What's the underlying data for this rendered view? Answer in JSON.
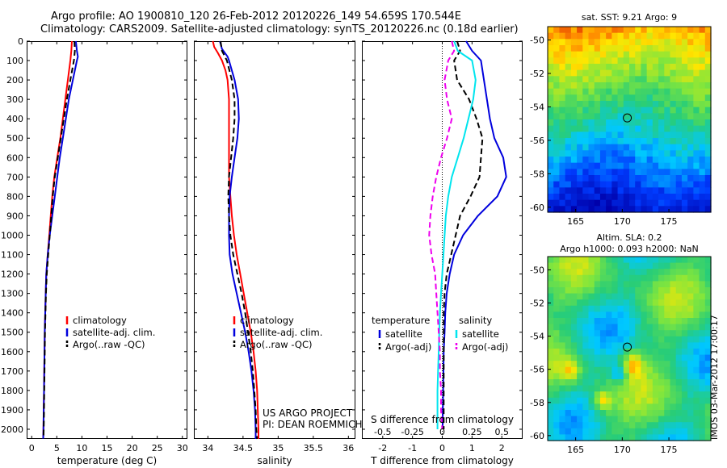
{
  "header": {
    "line1": "Argo profile: AO 1900810_120 26-Feb-2012 20120226_149 54.659S 170.544E",
    "line2": "Climatology: CARS2009. Satellite-adjusted climatology: synTS_20120226.nc (0.18d earlier)"
  },
  "colors": {
    "clim": "#ff0000",
    "sat": "#0000dd",
    "argo": "#000000",
    "sat_s": "#00e5ee",
    "argo_s": "#ee00ee"
  },
  "project_note": {
    "line1": "US ARGO PROJECT",
    "line2": "PI: DEAN ROEMMICH"
  },
  "stamp": "IMOS 03-Mar-2012 17:00:17",
  "chart_data": [
    {
      "type": "line",
      "xlabel": "temperature (deg C)",
      "xlim": [
        -1,
        31
      ],
      "ylim": [
        2050,
        0
      ],
      "xticks": [
        0,
        5,
        10,
        15,
        20,
        25,
        30
      ],
      "yticks": [
        0,
        100,
        200,
        300,
        400,
        500,
        600,
        700,
        800,
        900,
        1000,
        1100,
        1200,
        1300,
        1400,
        1500,
        1600,
        1700,
        1800,
        1900,
        2000
      ],
      "legend": [
        "climatology",
        "satellite-adj. clim.",
        "Argo(..raw -QC)"
      ],
      "legend_position": "lower-right",
      "series": [
        {
          "name": "climatology",
          "style": "solid",
          "color": "clim",
          "depth": [
            0,
            50,
            100,
            200,
            300,
            400,
            500,
            600,
            700,
            800,
            900,
            1000,
            1100,
            1200,
            1300,
            1400,
            1500,
            1600,
            1700,
            1800,
            1900,
            2000,
            2050
          ],
          "values": [
            8.0,
            7.9,
            7.7,
            7.2,
            6.7,
            6.2,
            5.7,
            5.1,
            4.5,
            4.1,
            3.8,
            3.5,
            3.2,
            2.9,
            2.8,
            2.7,
            2.6,
            2.55,
            2.5,
            2.45,
            2.4,
            2.35,
            2.3
          ]
        },
        {
          "name": "satellite-adj. clim.",
          "style": "solid",
          "color": "sat",
          "depth": [
            0,
            50,
            80,
            100,
            200,
            300,
            400,
            500,
            600,
            700,
            800,
            900,
            1000,
            1100,
            1200,
            1300,
            1400,
            1500,
            1600,
            1700,
            1800,
            1900,
            2000,
            2050
          ],
          "values": [
            8.8,
            9.0,
            9.2,
            9.0,
            8.2,
            7.4,
            6.8,
            6.2,
            5.6,
            5.1,
            4.6,
            4.1,
            3.6,
            3.2,
            2.9,
            2.8,
            2.7,
            2.6,
            2.55,
            2.5,
            2.45,
            2.4,
            2.35,
            2.3
          ]
        },
        {
          "name": "Argo(..raw -QC)",
          "style": "dashed",
          "color": "argo",
          "depth": [
            0,
            50,
            100,
            200,
            300,
            400,
            500,
            600,
            700,
            800,
            900,
            1000,
            1100,
            1200,
            1300,
            1400,
            1500,
            1600,
            1700,
            1800,
            1900,
            2000,
            2050
          ],
          "values": [
            8.5,
            8.6,
            8.4,
            7.7,
            7.0,
            6.4,
            5.8,
            5.2,
            4.6,
            4.2,
            3.9,
            3.6,
            3.3,
            3.0,
            2.85,
            2.75,
            2.65,
            2.6,
            2.55,
            2.5,
            2.45,
            2.4,
            2.35
          ]
        }
      ]
    },
    {
      "type": "line",
      "xlabel": "salinity",
      "xlim": [
        33.8,
        36.1
      ],
      "ylim": [
        2050,
        0
      ],
      "xticks": [
        34,
        34.5,
        35,
        35.5,
        36
      ],
      "legend": [
        "climatology",
        "satellite-adj. clim.",
        "Argo(..raw -QC)"
      ],
      "legend_position": "lower-right",
      "series": [
        {
          "name": "climatology",
          "style": "solid",
          "color": "clim",
          "depth": [
            0,
            30,
            60,
            100,
            150,
            200,
            300,
            400,
            500,
            600,
            700,
            800,
            900,
            1000,
            1100,
            1200,
            1300,
            1400,
            1500,
            1600,
            1700,
            1800,
            1900,
            2000,
            2050
          ],
          "values": [
            34.07,
            34.09,
            34.14,
            34.2,
            34.25,
            34.28,
            34.3,
            34.3,
            34.3,
            34.3,
            34.3,
            34.32,
            34.34,
            34.37,
            34.41,
            34.46,
            34.51,
            34.56,
            34.61,
            34.65,
            34.68,
            34.7,
            34.71,
            34.72,
            34.72
          ]
        },
        {
          "name": "satellite-adj. clim.",
          "style": "solid",
          "color": "sat",
          "depth": [
            0,
            40,
            80,
            100,
            200,
            300,
            400,
            500,
            600,
            700,
            800,
            900,
            1000,
            1100,
            1200,
            1300,
            1400,
            1500,
            1600,
            1700,
            1800,
            1900,
            2000,
            2050
          ],
          "values": [
            34.17,
            34.2,
            34.28,
            34.3,
            34.38,
            34.43,
            34.44,
            34.42,
            34.38,
            34.34,
            34.31,
            34.3,
            34.3,
            34.31,
            34.35,
            34.41,
            34.47,
            34.53,
            34.58,
            34.62,
            34.65,
            34.67,
            34.68,
            34.68
          ]
        },
        {
          "name": "Argo(..raw -QC)",
          "style": "dashed",
          "color": "argo",
          "depth": [
            0,
            50,
            100,
            200,
            300,
            400,
            500,
            600,
            700,
            800,
            900,
            1000,
            1100,
            1200,
            1300,
            1400,
            1500,
            1600,
            1700,
            1800,
            1900,
            2000,
            2050
          ],
          "values": [
            34.18,
            34.2,
            34.27,
            34.34,
            34.38,
            34.38,
            34.36,
            34.33,
            34.3,
            34.29,
            34.3,
            34.32,
            34.36,
            34.42,
            34.48,
            34.53,
            34.57,
            34.61,
            34.64,
            34.66,
            34.68,
            34.69,
            34.7
          ]
        }
      ]
    },
    {
      "type": "line",
      "xlabel": "T difference from climatology",
      "xlabel2": "S difference from climatology",
      "xlim": [
        -2.7,
        2.7
      ],
      "ylim": [
        2050,
        0
      ],
      "xticks": [
        -2,
        -1,
        0,
        1,
        2
      ],
      "xticks2": [
        -0.5,
        -0.25,
        0,
        0.25,
        0.5
      ],
      "xtick2_labels": [
        "-0.5",
        "-0.25",
        "0",
        "0.25",
        "0.5"
      ],
      "legend_titles": [
        "temperature",
        "salinity"
      ],
      "legend": [
        "satellite",
        "Argo(-adj)",
        "satellite",
        "Argo(-adj)"
      ],
      "legend_position": "lower-center",
      "series": [
        {
          "name": "satellite",
          "group": "temperature",
          "style": "solid",
          "color": "sat",
          "depth": [
            0,
            50,
            100,
            200,
            300,
            400,
            500,
            600,
            700,
            800,
            900,
            1000,
            1100,
            1200,
            1300,
            1400,
            1500,
            1600,
            1700,
            1800,
            1900,
            2000
          ],
          "values": [
            0.8,
            1.0,
            1.3,
            1.4,
            1.5,
            1.6,
            1.75,
            2.05,
            2.15,
            1.85,
            1.2,
            0.7,
            0.4,
            0.25,
            0.15,
            0.1,
            0.08,
            0.05,
            0.04,
            0.03,
            0.02,
            0.01
          ]
        },
        {
          "name": "Argo(-adj)",
          "group": "temperature",
          "style": "dashed",
          "color": "argo",
          "depth": [
            0,
            50,
            100,
            200,
            300,
            400,
            500,
            600,
            700,
            800,
            900,
            1000,
            1100,
            1200,
            1300,
            1400,
            1500,
            1600,
            1700,
            1800,
            1900,
            2000
          ],
          "values": [
            0.5,
            0.6,
            0.4,
            0.5,
            0.9,
            1.15,
            1.35,
            1.3,
            1.25,
            0.95,
            0.6,
            0.45,
            0.3,
            0.15,
            0.08,
            0.05,
            0.05,
            0.05,
            0.05,
            0.05,
            0.05,
            0.05
          ]
        },
        {
          "name": "satellite",
          "group": "salinity",
          "style": "solid",
          "color": "sat_s",
          "depth": [
            0,
            50,
            100,
            200,
            300,
            400,
            500,
            600,
            700,
            800,
            900,
            1000,
            1100,
            1200,
            1300,
            1400,
            1500,
            1600,
            1700,
            1800,
            1900,
            2000
          ],
          "values": [
            0.1,
            0.13,
            0.25,
            0.28,
            0.26,
            0.22,
            0.18,
            0.13,
            0.08,
            0.05,
            0.03,
            0.02,
            0.01,
            0.0,
            -0.01,
            -0.02,
            -0.025,
            -0.03,
            -0.035,
            -0.04,
            -0.04,
            -0.04
          ]
        },
        {
          "name": "Argo(-adj)",
          "group": "salinity",
          "style": "dashed",
          "color": "argo_s",
          "depth": [
            0,
            50,
            100,
            200,
            300,
            400,
            500,
            600,
            700,
            800,
            900,
            1000,
            1100,
            1200,
            1300,
            1400,
            1500,
            1600,
            1700,
            1800,
            1900,
            2000
          ],
          "values": [
            0.08,
            0.1,
            0.05,
            0.02,
            0.04,
            0.08,
            0.04,
            -0.01,
            -0.05,
            -0.08,
            -0.1,
            -0.11,
            -0.09,
            -0.06,
            -0.05,
            -0.04,
            -0.03,
            -0.02,
            -0.02,
            -0.01,
            -0.01,
            0.0
          ]
        }
      ]
    },
    {
      "type": "heatmap",
      "title": "sat. SST: 9.21  Argo: 9",
      "xlim": [
        162,
        179.5
      ],
      "ylim": [
        -60.3,
        -49.2
      ],
      "xticks": [
        165,
        170,
        175
      ],
      "yticks": [
        -50,
        -52,
        -54,
        -56,
        -58,
        -60
      ],
      "argo_position": [
        170.54,
        -54.66
      ]
    },
    {
      "type": "heatmap",
      "title": "Altim. SLA: 0.2",
      "subtitle": "Argo h1000: 0.093  h2000: NaN",
      "xlim": [
        162,
        179.5
      ],
      "ylim": [
        -60.3,
        -49.2
      ],
      "xticks": [
        165,
        170,
        175
      ],
      "yticks": [
        -50,
        -52,
        -54,
        -56,
        -58,
        -60
      ],
      "argo_position": [
        170.54,
        -54.66
      ]
    }
  ]
}
